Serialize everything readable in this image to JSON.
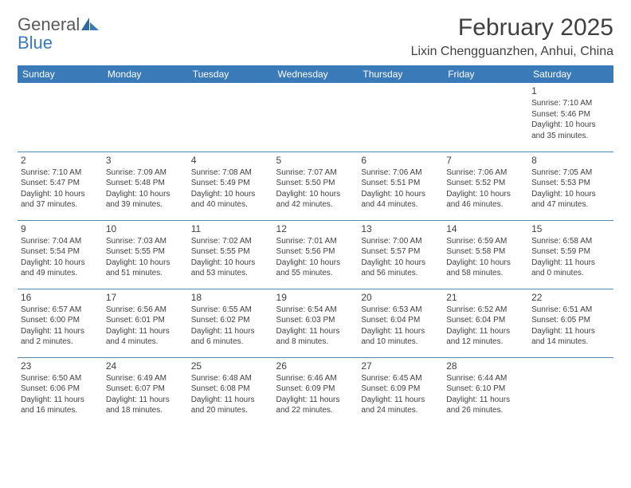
{
  "brand": {
    "part1": "General",
    "part2": "Blue"
  },
  "title": "February 2025",
  "location": "Lixin Chengguanzhen, Anhui, China",
  "colors": {
    "header_bg": "#3a7ab8",
    "header_text": "#ffffff",
    "border": "#5a87ad",
    "text": "#404040",
    "logo_gray": "#595959",
    "logo_blue": "#3a7ab8"
  },
  "typography": {
    "title_fontsize": 30,
    "location_fontsize": 16,
    "dayheader_fontsize": 12,
    "daynum_fontsize": 12,
    "body_fontsize": 10
  },
  "dayHeaders": [
    "Sunday",
    "Monday",
    "Tuesday",
    "Wednesday",
    "Thursday",
    "Friday",
    "Saturday"
  ],
  "weeks": [
    [
      null,
      null,
      null,
      null,
      null,
      null,
      {
        "n": "1",
        "sr": "Sunrise: 7:10 AM",
        "ss": "Sunset: 5:46 PM",
        "dl": "Daylight: 10 hours and 35 minutes."
      }
    ],
    [
      {
        "n": "2",
        "sr": "Sunrise: 7:10 AM",
        "ss": "Sunset: 5:47 PM",
        "dl": "Daylight: 10 hours and 37 minutes."
      },
      {
        "n": "3",
        "sr": "Sunrise: 7:09 AM",
        "ss": "Sunset: 5:48 PM",
        "dl": "Daylight: 10 hours and 39 minutes."
      },
      {
        "n": "4",
        "sr": "Sunrise: 7:08 AM",
        "ss": "Sunset: 5:49 PM",
        "dl": "Daylight: 10 hours and 40 minutes."
      },
      {
        "n": "5",
        "sr": "Sunrise: 7:07 AM",
        "ss": "Sunset: 5:50 PM",
        "dl": "Daylight: 10 hours and 42 minutes."
      },
      {
        "n": "6",
        "sr": "Sunrise: 7:06 AM",
        "ss": "Sunset: 5:51 PM",
        "dl": "Daylight: 10 hours and 44 minutes."
      },
      {
        "n": "7",
        "sr": "Sunrise: 7:06 AM",
        "ss": "Sunset: 5:52 PM",
        "dl": "Daylight: 10 hours and 46 minutes."
      },
      {
        "n": "8",
        "sr": "Sunrise: 7:05 AM",
        "ss": "Sunset: 5:53 PM",
        "dl": "Daylight: 10 hours and 47 minutes."
      }
    ],
    [
      {
        "n": "9",
        "sr": "Sunrise: 7:04 AM",
        "ss": "Sunset: 5:54 PM",
        "dl": "Daylight: 10 hours and 49 minutes."
      },
      {
        "n": "10",
        "sr": "Sunrise: 7:03 AM",
        "ss": "Sunset: 5:55 PM",
        "dl": "Daylight: 10 hours and 51 minutes."
      },
      {
        "n": "11",
        "sr": "Sunrise: 7:02 AM",
        "ss": "Sunset: 5:55 PM",
        "dl": "Daylight: 10 hours and 53 minutes."
      },
      {
        "n": "12",
        "sr": "Sunrise: 7:01 AM",
        "ss": "Sunset: 5:56 PM",
        "dl": "Daylight: 10 hours and 55 minutes."
      },
      {
        "n": "13",
        "sr": "Sunrise: 7:00 AM",
        "ss": "Sunset: 5:57 PM",
        "dl": "Daylight: 10 hours and 56 minutes."
      },
      {
        "n": "14",
        "sr": "Sunrise: 6:59 AM",
        "ss": "Sunset: 5:58 PM",
        "dl": "Daylight: 10 hours and 58 minutes."
      },
      {
        "n": "15",
        "sr": "Sunrise: 6:58 AM",
        "ss": "Sunset: 5:59 PM",
        "dl": "Daylight: 11 hours and 0 minutes."
      }
    ],
    [
      {
        "n": "16",
        "sr": "Sunrise: 6:57 AM",
        "ss": "Sunset: 6:00 PM",
        "dl": "Daylight: 11 hours and 2 minutes."
      },
      {
        "n": "17",
        "sr": "Sunrise: 6:56 AM",
        "ss": "Sunset: 6:01 PM",
        "dl": "Daylight: 11 hours and 4 minutes."
      },
      {
        "n": "18",
        "sr": "Sunrise: 6:55 AM",
        "ss": "Sunset: 6:02 PM",
        "dl": "Daylight: 11 hours and 6 minutes."
      },
      {
        "n": "19",
        "sr": "Sunrise: 6:54 AM",
        "ss": "Sunset: 6:03 PM",
        "dl": "Daylight: 11 hours and 8 minutes."
      },
      {
        "n": "20",
        "sr": "Sunrise: 6:53 AM",
        "ss": "Sunset: 6:04 PM",
        "dl": "Daylight: 11 hours and 10 minutes."
      },
      {
        "n": "21",
        "sr": "Sunrise: 6:52 AM",
        "ss": "Sunset: 6:04 PM",
        "dl": "Daylight: 11 hours and 12 minutes."
      },
      {
        "n": "22",
        "sr": "Sunrise: 6:51 AM",
        "ss": "Sunset: 6:05 PM",
        "dl": "Daylight: 11 hours and 14 minutes."
      }
    ],
    [
      {
        "n": "23",
        "sr": "Sunrise: 6:50 AM",
        "ss": "Sunset: 6:06 PM",
        "dl": "Daylight: 11 hours and 16 minutes."
      },
      {
        "n": "24",
        "sr": "Sunrise: 6:49 AM",
        "ss": "Sunset: 6:07 PM",
        "dl": "Daylight: 11 hours and 18 minutes."
      },
      {
        "n": "25",
        "sr": "Sunrise: 6:48 AM",
        "ss": "Sunset: 6:08 PM",
        "dl": "Daylight: 11 hours and 20 minutes."
      },
      {
        "n": "26",
        "sr": "Sunrise: 6:46 AM",
        "ss": "Sunset: 6:09 PM",
        "dl": "Daylight: 11 hours and 22 minutes."
      },
      {
        "n": "27",
        "sr": "Sunrise: 6:45 AM",
        "ss": "Sunset: 6:09 PM",
        "dl": "Daylight: 11 hours and 24 minutes."
      },
      {
        "n": "28",
        "sr": "Sunrise: 6:44 AM",
        "ss": "Sunset: 6:10 PM",
        "dl": "Daylight: 11 hours and 26 minutes."
      },
      null
    ]
  ]
}
